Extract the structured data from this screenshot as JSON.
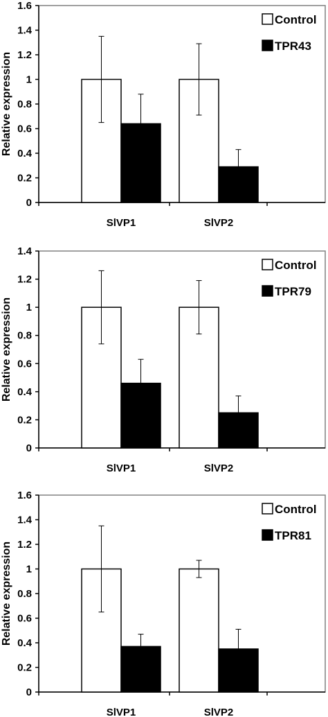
{
  "chart_data": [
    {
      "type": "bar",
      "title": "",
      "xlabel": "",
      "ylabel": "Relative expression",
      "ylim": [
        0,
        1.6
      ],
      "yticks": [
        "0",
        "0.2",
        "0.4",
        "0.6",
        "0.8",
        "1",
        "1.2",
        "1.4",
        "1.6"
      ],
      "categories": [
        "SlVP1",
        "SlVP2"
      ],
      "legend_position": "top-right",
      "grid": false,
      "series": [
        {
          "name": "Control",
          "color": "#ffffff",
          "values": [
            1.0,
            1.0
          ],
          "errors": [
            0.35,
            0.29
          ]
        },
        {
          "name": "TPR43",
          "color": "#000000",
          "values": [
            0.64,
            0.29
          ],
          "errors": [
            0.24,
            0.14
          ]
        }
      ]
    },
    {
      "type": "bar",
      "title": "",
      "xlabel": "",
      "ylabel": "Relative expression",
      "ylim": [
        0,
        1.4
      ],
      "yticks": [
        "0",
        "0.2",
        "0.4",
        "0.6",
        "0.8",
        "1",
        "1.2",
        "1.4"
      ],
      "categories": [
        "SlVP1",
        "SlVP2"
      ],
      "legend_position": "top-right",
      "grid": false,
      "series": [
        {
          "name": "Control",
          "color": "#ffffff",
          "values": [
            1.0,
            1.0
          ],
          "errors": [
            0.26,
            0.19
          ]
        },
        {
          "name": "TPR79",
          "color": "#000000",
          "values": [
            0.46,
            0.25
          ],
          "errors": [
            0.17,
            0.12
          ]
        }
      ]
    },
    {
      "type": "bar",
      "title": "",
      "xlabel": "",
      "ylabel": "Relative expression",
      "ylim": [
        0,
        1.6
      ],
      "yticks": [
        "0",
        "0.2",
        "0.4",
        "0.6",
        "0.8",
        "1",
        "1.2",
        "1.4",
        "1.6"
      ],
      "categories": [
        "SlVP1",
        "SlVP2"
      ],
      "legend_position": "top-right",
      "grid": false,
      "series": [
        {
          "name": "Control",
          "color": "#ffffff",
          "values": [
            1.0,
            1.0
          ],
          "errors": [
            0.35,
            0.07
          ]
        },
        {
          "name": "TPR81",
          "color": "#000000",
          "values": [
            0.37,
            0.35
          ],
          "errors": [
            0.1,
            0.16
          ]
        }
      ]
    }
  ]
}
